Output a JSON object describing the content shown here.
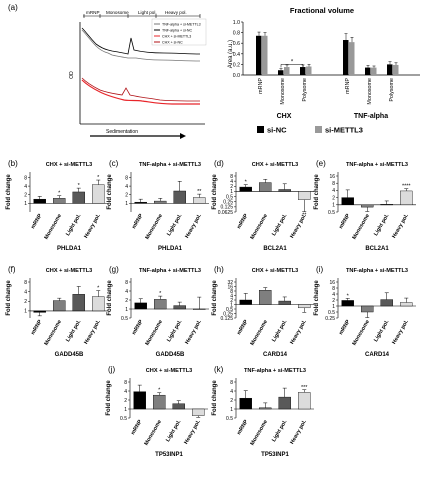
{
  "panel_a": {
    "letter": "(a)",
    "header_labels": [
      "mRNP",
      "Monosome",
      "Light pol.",
      "Heavy pol."
    ],
    "legend": [
      "TNF-alpha + si-METTL3",
      "TNF-alpha + si-NC",
      "CHX + si-METTL3",
      "CHX + si-NC"
    ],
    "ylabel": "OD",
    "xlabel": "Sedimentation",
    "colors": {
      "gray": "#777777",
      "black": "#000000",
      "red": "#e8252a",
      "darkred": "#b01015"
    }
  },
  "fractional": {
    "title": "Fractional volume",
    "ylabel": "Area (a.u.)",
    "ylim": [
      0,
      1.0
    ],
    "yticks": [
      "0.0",
      "0.2",
      "0.4",
      "0.6",
      "0.8",
      "1.0"
    ],
    "groups": [
      {
        "label": "CHX",
        "categories": [
          "mRNP",
          "Monosome",
          "Polysome"
        ],
        "nc": [
          0.74,
          0.09,
          0.15
        ],
        "mettl3": [
          0.74,
          0.15,
          0.16
        ],
        "nc_err": [
          0.07,
          0.03,
          0.04
        ],
        "mettl3_err": [
          0.06,
          0.04,
          0.04
        ]
      },
      {
        "label": "TNF-alpha",
        "categories": [
          "mRNP",
          "Monosome",
          "Polysome"
        ],
        "nc": [
          0.66,
          0.14,
          0.2
        ],
        "mettl3": [
          0.62,
          0.14,
          0.19
        ],
        "nc_err": [
          0.12,
          0.04,
          0.05
        ],
        "mettl3_err": [
          0.09,
          0.03,
          0.04
        ]
      }
    ],
    "sig": "*",
    "legend": [
      {
        "name": "si-NC",
        "color": "#000000"
      },
      {
        "name": "si-METTL3",
        "color": "#999999"
      }
    ]
  },
  "chart_data": [
    {
      "type": "bar",
      "panel": "(b)",
      "title": "CHX + si-METTL3",
      "gene": "PHLDA1",
      "scale": "log2",
      "ylabel": "Fold change",
      "yticks": [
        1,
        2,
        4,
        8
      ],
      "ylim": [
        0.5,
        9
      ],
      "categories": [
        "mRNP",
        "Monosome",
        "Light pol.",
        "Heavy pol."
      ],
      "values": [
        1.4,
        1.5,
        2.5,
        4.5
      ],
      "errors": [
        0.35,
        0.35,
        0.9,
        2.0
      ],
      "sig": [
        "",
        "*",
        "*",
        "*"
      ]
    },
    {
      "type": "bar",
      "panel": "(c)",
      "title": "TNF-alpha + si-METTL3",
      "gene": "PHLDA1",
      "scale": "log2",
      "ylabel": "Fold change",
      "yticks": [
        1,
        2,
        4,
        8
      ],
      "ylim": [
        0.5,
        9
      ],
      "categories": [
        "mRNP",
        "Monosome",
        "Light pol.",
        "Heavy pol."
      ],
      "values": [
        1.1,
        1.2,
        2.7,
        1.6
      ],
      "errors": [
        0.3,
        0.3,
        3.2,
        0.5
      ],
      "sig": [
        "",
        "",
        "",
        "**"
      ]
    },
    {
      "type": "bar",
      "panel": "(d)",
      "title": "CHX + si-METTL3",
      "gene": "BCL2A1",
      "scale": "log2",
      "ylabel": "Fold change",
      "yticks": [
        0.0625,
        0.125,
        0.25,
        0.5,
        1,
        2,
        4,
        8
      ],
      "ylim": [
        0.0625,
        8
      ],
      "categories": [
        "mRNP",
        "Monosome",
        "Light pol.",
        "Heavy pol."
      ],
      "values": [
        1.8,
        3.3,
        1.3,
        0.33
      ],
      "errors": [
        0.7,
        1.8,
        1.5,
        0.3
      ],
      "sig": [
        "*",
        "",
        "",
        "**"
      ]
    },
    {
      "type": "bar",
      "panel": "(e)",
      "title": "TNF-alpha + si-METTL3",
      "gene": "BCL2A1",
      "scale": "log2",
      "ylabel": "Fold change",
      "yticks": [
        0.5,
        1,
        2,
        4,
        8,
        16
      ],
      "ylim": [
        0.5,
        16
      ],
      "categories": [
        "mRNP",
        "Monosome",
        "Light pol.",
        "Heavy pol."
      ],
      "values": [
        2.0,
        0.8,
        1.05,
        3.8
      ],
      "errors": [
        2.2,
        0.5,
        0.4,
        0.9
      ],
      "sig": [
        "",
        "",
        "",
        "****"
      ]
    },
    {
      "type": "bar",
      "panel": "(f)",
      "title": "CHX + si-METTL3",
      "gene": "GADD45B",
      "scale": "log2",
      "ylabel": "Fold change",
      "yticks": [
        1,
        2,
        4,
        8
      ],
      "ylim": [
        0.6,
        8
      ],
      "categories": [
        "mRNP",
        "Monosome",
        "Light pol.",
        "Heavy pol."
      ],
      "values": [
        0.9,
        2.1,
        3.3,
        2.8
      ],
      "errors": [
        0.2,
        0.4,
        2.5,
        1.5
      ],
      "sig": [
        "",
        "",
        "",
        "*"
      ]
    },
    {
      "type": "bar",
      "panel": "(g)",
      "title": "TNF-alpha + si-METTL3",
      "gene": "GADD45B",
      "scale": "log2",
      "ylabel": "Fold change",
      "yticks": [
        0.5,
        1,
        2,
        4,
        8
      ],
      "ylim": [
        0.5,
        8
      ],
      "categories": [
        "mRNP",
        "Monosome",
        "Light pol.",
        "Heavy pol."
      ],
      "values": [
        1.6,
        2.1,
        1.3,
        1.0
      ],
      "errors": [
        0.6,
        0.6,
        0.4,
        1.5
      ],
      "sig": [
        "",
        "*",
        "",
        ""
      ]
    },
    {
      "type": "bar",
      "panel": "(h)",
      "title": "CHX + si-METTL3",
      "gene": "CARD14",
      "scale": "log2",
      "ylabel": "Fold change",
      "yticks": [
        0.125,
        0.25,
        0.5,
        1,
        2,
        4,
        8,
        16,
        32
      ],
      "ylim": [
        0.125,
        32
      ],
      "categories": [
        "mRNP",
        "Monosome",
        "Light pol.",
        "Heavy pol."
      ],
      "values": [
        2.0,
        9.0,
        1.7,
        0.6
      ],
      "errors": [
        3.5,
        4.5,
        1.5,
        0.3
      ],
      "sig": [
        "",
        "",
        "",
        ""
      ]
    },
    {
      "type": "bar",
      "panel": "(i)",
      "title": "TNF-alpha + si-METTL3",
      "gene": "CARD14",
      "scale": "log2",
      "ylabel": "Fold change",
      "yticks": [
        0.25,
        0.5,
        1,
        2,
        4,
        8,
        16
      ],
      "ylim": [
        0.25,
        16
      ],
      "categories": [
        "mRNP",
        "Monosome",
        "Light pol.",
        "Heavy pol."
      ],
      "values": [
        1.9,
        0.5,
        2.1,
        1.5
      ],
      "errors": [
        0.5,
        0.4,
        2.5,
        1.0
      ],
      "sig": [
        "*",
        "",
        "",
        ""
      ]
    },
    {
      "type": "bar",
      "panel": "(j)",
      "title": "CHX + si-METTL3",
      "gene": "TP53INP1",
      "scale": "log2",
      "ylabel": "Fold change",
      "yticks": [
        0.5,
        1,
        2,
        4,
        8
      ],
      "ylim": [
        0.5,
        8
      ],
      "categories": [
        "mRNP",
        "Monosome",
        "Light pol.",
        "Heavy pol."
      ],
      "values": [
        3.8,
        2.9,
        1.5,
        0.6
      ],
      "errors": [
        2.5,
        0.6,
        0.4,
        0.4
      ],
      "sig": [
        "",
        "*",
        "",
        ""
      ]
    },
    {
      "type": "bar",
      "panel": "(k)",
      "title": "TNF-alpha + si-METTL3",
      "gene": "TP53INP1",
      "scale": "log2",
      "ylabel": "Fold change",
      "yticks": [
        0.5,
        1,
        2,
        4,
        8
      ],
      "ylim": [
        0.5,
        8
      ],
      "categories": [
        "mRNP",
        "Monosome",
        "Light pol.",
        "Heavy pol."
      ],
      "values": [
        2.3,
        1.1,
        2.5,
        3.6
      ],
      "errors": [
        1.8,
        0.5,
        2.5,
        0.8
      ],
      "sig": [
        "",
        "",
        "",
        "***"
      ]
    }
  ],
  "bar_colors": [
    "#000000",
    "#7f7f7f",
    "#595959",
    "#dcdcdc"
  ]
}
